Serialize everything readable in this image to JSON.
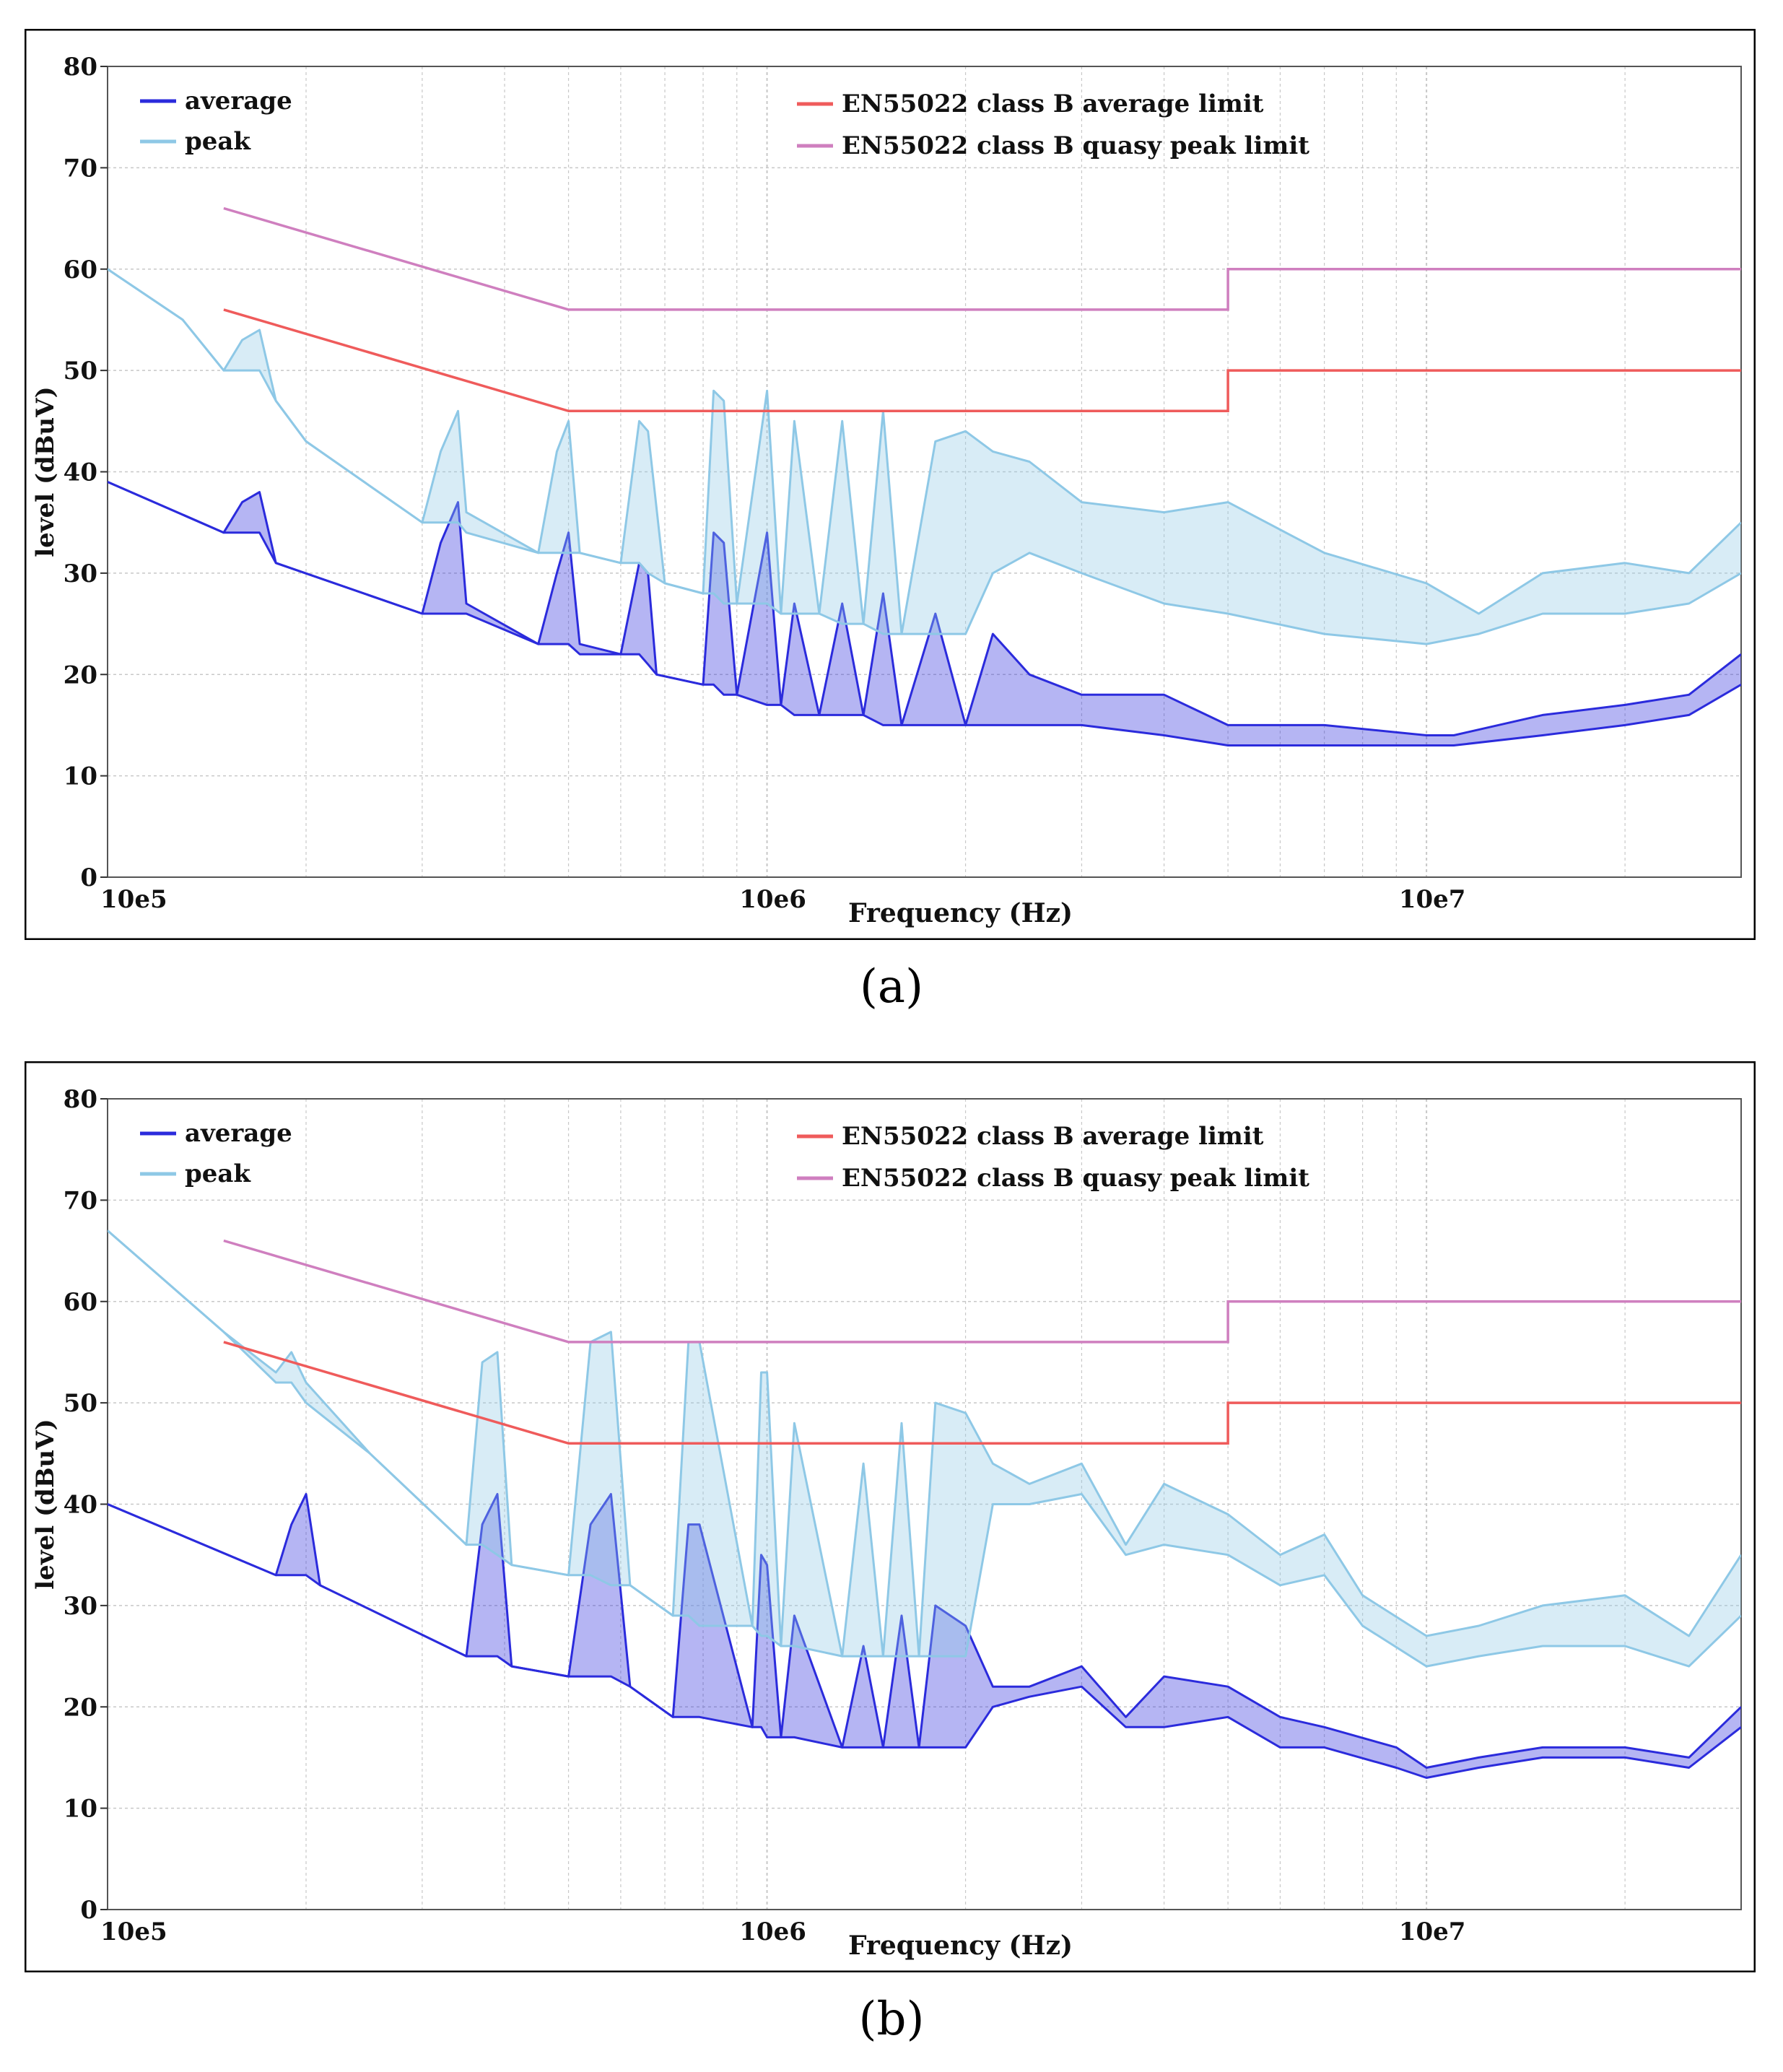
{
  "captions": [
    "(a)",
    "(b)"
  ],
  "caption_letters": [
    "a",
    "b"
  ],
  "colors": {
    "average": "#2b2bdc",
    "peak": "#8ec8e6",
    "avg_limit": "#ef5b5b",
    "qp_limit": "#cf7fbf",
    "grid": "#c8c8c8",
    "frame": "#000000"
  },
  "chart_data": [
    {
      "type": "line",
      "panel": "a",
      "xlabel": "Frequency (Hz)",
      "ylabel": "level (dBuV)",
      "xscale": "log",
      "xlim": [
        100000,
        30000000
      ],
      "ylim": [
        0,
        80
      ],
      "xticks": [
        {
          "value": 100000,
          "label": "10e5"
        },
        {
          "value": 1000000,
          "label": "10e6"
        },
        {
          "value": 10000000,
          "label": "10e7"
        }
      ],
      "yticks": [
        0,
        10,
        20,
        30,
        40,
        50,
        60,
        70,
        80
      ],
      "grid": true,
      "legend_left": [
        "average",
        "peak"
      ],
      "legend_right": [
        "EN55022 class B average limit",
        "EN55022 class B quasy peak limit"
      ],
      "series": [
        {
          "name": "average",
          "color_key": "average",
          "x": [
            100000,
            150000,
            160000,
            170000,
            180000,
            300000,
            320000,
            340000,
            350000,
            450000,
            480000,
            500000,
            520000,
            600000,
            640000,
            660000,
            680000,
            800000,
            830000,
            860000,
            900000,
            1000000,
            1050000,
            1100000,
            1200000,
            1300000,
            1400000,
            1500000,
            1600000,
            1800000,
            2000000,
            2200000,
            2500000,
            3000000,
            4000000,
            5000000,
            7000000,
            10000000,
            11000000,
            15000000,
            20000000,
            25000000,
            30000000
          ],
          "y": [
            39,
            34,
            37,
            38,
            31,
            26,
            33,
            37,
            27,
            23,
            30,
            34,
            23,
            22,
            31,
            30,
            20,
            19,
            34,
            33,
            18,
            34,
            17,
            27,
            16,
            27,
            16,
            28,
            15,
            26,
            15,
            24,
            20,
            18,
            18,
            15,
            15,
            14,
            14,
            16,
            17,
            18,
            22
          ],
          "min": [
            39,
            34,
            34,
            34,
            31,
            26,
            26,
            26,
            26,
            23,
            23,
            23,
            22,
            22,
            22,
            21,
            20,
            19,
            19,
            18,
            18,
            17,
            17,
            16,
            16,
            16,
            16,
            15,
            15,
            15,
            15,
            15,
            15,
            15,
            14,
            13,
            13,
            13,
            13,
            14,
            15,
            16,
            19
          ]
        },
        {
          "name": "peak",
          "color_key": "peak",
          "x": [
            100000,
            130000,
            150000,
            160000,
            170000,
            180000,
            200000,
            300000,
            320000,
            340000,
            350000,
            450000,
            480000,
            500000,
            520000,
            600000,
            640000,
            660000,
            700000,
            800000,
            830000,
            860000,
            900000,
            1000000,
            1050000,
            1100000,
            1200000,
            1300000,
            1400000,
            1500000,
            1600000,
            1800000,
            2000000,
            2200000,
            2500000,
            3000000,
            4000000,
            5000000,
            7000000,
            10000000,
            12000000,
            15000000,
            20000000,
            25000000,
            30000000
          ],
          "y": [
            60,
            55,
            50,
            53,
            54,
            47,
            43,
            35,
            42,
            46,
            36,
            32,
            42,
            45,
            32,
            31,
            45,
            44,
            29,
            28,
            48,
            47,
            27,
            48,
            26,
            45,
            26,
            45,
            25,
            46,
            24,
            43,
            44,
            42,
            41,
            37,
            36,
            37,
            32,
            29,
            26,
            30,
            31,
            30,
            35
          ],
          "min": [
            60,
            55,
            50,
            50,
            50,
            47,
            43,
            35,
            35,
            35,
            34,
            32,
            32,
            32,
            32,
            31,
            31,
            30,
            29,
            28,
            28,
            27,
            27,
            27,
            26,
            26,
            26,
            25,
            25,
            24,
            24,
            24,
            24,
            30,
            32,
            30,
            27,
            26,
            24,
            23,
            24,
            26,
            26,
            27,
            30
          ]
        },
        {
          "name": "EN55022 class B average limit",
          "color_key": "avg_limit",
          "x": [
            150000,
            500000,
            5000000,
            5000000,
            30000000
          ],
          "y": [
            56,
            46,
            46,
            50,
            50
          ]
        },
        {
          "name": "EN55022 class B quasy peak limit",
          "color_key": "qp_limit",
          "x": [
            150000,
            500000,
            5000000,
            5000000,
            30000000
          ],
          "y": [
            66,
            56,
            56,
            60,
            60
          ]
        }
      ]
    },
    {
      "type": "line",
      "panel": "b",
      "xlabel": "Frequency (Hz)",
      "ylabel": "level (dBuV)",
      "xscale": "log",
      "xlim": [
        100000,
        30000000
      ],
      "ylim": [
        0,
        80
      ],
      "xticks": [
        {
          "value": 100000,
          "label": "10e5"
        },
        {
          "value": 1000000,
          "label": "10e6"
        },
        {
          "value": 10000000,
          "label": "10e7"
        }
      ],
      "yticks": [
        0,
        10,
        20,
        30,
        40,
        50,
        60,
        70,
        80
      ],
      "grid": true,
      "legend_left": [
        "average",
        "peak"
      ],
      "legend_right": [
        "EN55022 class B average limit",
        "EN55022 class B quasy peak limit"
      ],
      "series": [
        {
          "name": "average",
          "color_key": "average",
          "x": [
            100000,
            180000,
            190000,
            200000,
            210000,
            350000,
            370000,
            390000,
            410000,
            500000,
            540000,
            580000,
            620000,
            720000,
            760000,
            790000,
            950000,
            980000,
            1000000,
            1050000,
            1100000,
            1300000,
            1400000,
            1500000,
            1600000,
            1700000,
            1800000,
            2000000,
            2200000,
            2500000,
            3000000,
            3500000,
            4000000,
            5000000,
            6000000,
            7000000,
            9000000,
            10000000,
            12000000,
            15000000,
            20000000,
            25000000,
            30000000
          ],
          "y": [
            40,
            33,
            38,
            41,
            32,
            25,
            38,
            41,
            24,
            23,
            38,
            41,
            22,
            19,
            38,
            38,
            18,
            35,
            34,
            17,
            29,
            16,
            26,
            16,
            29,
            16,
            30,
            28,
            22,
            22,
            24,
            19,
            23,
            22,
            19,
            18,
            16,
            14,
            15,
            16,
            16,
            15,
            20
          ],
          "min": [
            40,
            33,
            33,
            33,
            32,
            25,
            25,
            25,
            24,
            23,
            23,
            23,
            22,
            19,
            19,
            19,
            18,
            18,
            17,
            17,
            17,
            16,
            16,
            16,
            16,
            16,
            16,
            16,
            20,
            21,
            22,
            18,
            18,
            19,
            16,
            16,
            14,
            13,
            14,
            15,
            15,
            14,
            18
          ]
        },
        {
          "name": "peak",
          "color_key": "peak",
          "x": [
            100000,
            150000,
            180000,
            190000,
            200000,
            250000,
            350000,
            370000,
            390000,
            410000,
            500000,
            540000,
            580000,
            620000,
            720000,
            760000,
            790000,
            950000,
            980000,
            1000000,
            1050000,
            1100000,
            1300000,
            1400000,
            1500000,
            1600000,
            1700000,
            1800000,
            2000000,
            2200000,
            2500000,
            3000000,
            3500000,
            4000000,
            5000000,
            6000000,
            7000000,
            8000000,
            10000000,
            12000000,
            15000000,
            20000000,
            25000000,
            30000000
          ],
          "y": [
            67,
            57,
            53,
            55,
            52,
            45,
            36,
            54,
            55,
            34,
            33,
            56,
            57,
            32,
            29,
            56,
            56,
            28,
            53,
            53,
            26,
            48,
            25,
            44,
            25,
            48,
            25,
            50,
            49,
            44,
            42,
            44,
            36,
            42,
            39,
            35,
            37,
            31,
            27,
            28,
            30,
            31,
            27,
            35
          ],
          "min": [
            67,
            57,
            52,
            52,
            50,
            45,
            36,
            36,
            35,
            34,
            33,
            33,
            32,
            32,
            29,
            29,
            28,
            28,
            27,
            27,
            26,
            26,
            25,
            25,
            25,
            25,
            25,
            25,
            25,
            40,
            40,
            41,
            35,
            36,
            35,
            32,
            33,
            28,
            24,
            25,
            26,
            26,
            24,
            29
          ]
        },
        {
          "name": "EN55022 class B average limit",
          "color_key": "avg_limit",
          "x": [
            150000,
            500000,
            5000000,
            5000000,
            30000000
          ],
          "y": [
            56,
            46,
            46,
            50,
            50
          ]
        },
        {
          "name": "EN55022 class B quasy peak limit",
          "color_key": "qp_limit",
          "x": [
            150000,
            500000,
            5000000,
            5000000,
            30000000
          ],
          "y": [
            66,
            56,
            56,
            60,
            60
          ]
        }
      ]
    }
  ]
}
